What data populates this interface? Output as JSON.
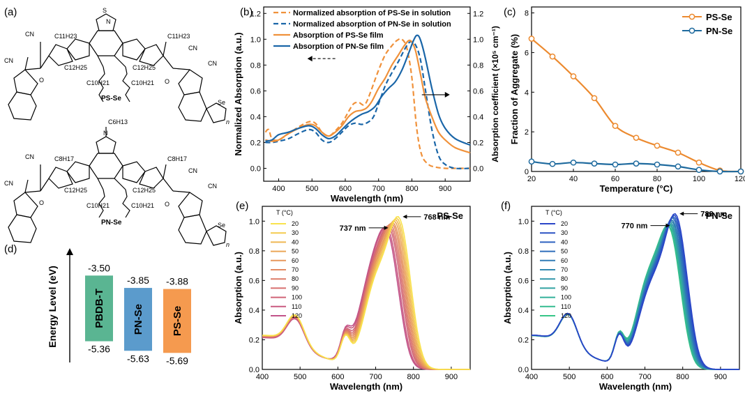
{
  "panels": {
    "a": {
      "letter": "(a)",
      "mol1": {
        "name": "PS-Se",
        "side_chain": "C11H23",
        "branch": "C12H25",
        "branch2": "C10H21",
        "core": "Se",
        "top_atom": "S",
        "n": "n"
      },
      "mol2": {
        "name": "PN-Se",
        "side_chain": "C8H17",
        "branch": "C12H25",
        "branch2": "C10H21",
        "core": "Se",
        "top_atom": "N",
        "top_sub": "C6H13",
        "n": "n"
      },
      "cn": "CN",
      "o": "O",
      "s": "S",
      "n": "N"
    },
    "b": {
      "letter": "(b)"
    },
    "c": {
      "letter": "(c)"
    },
    "d": {
      "letter": "(d)"
    },
    "e": {
      "letter": "(e)"
    },
    "f": {
      "letter": "(f)"
    }
  },
  "chart_data": [
    {
      "panel": "b",
      "type": "line",
      "xlabel": "Wavelength (nm)",
      "ylabel": "Normalized Absorption (a.u.)",
      "y2label": "Absorption coefficient (×10⁵ cm⁻¹)",
      "xlim": [
        355,
        975
      ],
      "ylim": [
        -0.1,
        1.25
      ],
      "y2lim": [
        -0.1,
        1.25
      ],
      "xticks": [
        400,
        500,
        600,
        700,
        800,
        900
      ],
      "yticks": [
        0.0,
        0.2,
        0.4,
        0.6,
        0.8,
        1.0,
        1.2
      ],
      "y2ticks": [
        0.0,
        0.2,
        0.4,
        0.6,
        0.8,
        1.0,
        1.2
      ],
      "legend_position": "top",
      "series": [
        {
          "name": "Normalized absorption of PS-Se in solution",
          "color": "#f0913a",
          "style": "dash",
          "x": [
            360,
            370,
            380,
            400,
            430,
            460,
            490,
            510,
            530,
            550,
            570,
            590,
            610,
            625,
            640,
            655,
            665,
            680,
            700,
            720,
            740,
            755,
            770,
            785,
            800,
            815,
            830,
            850,
            870,
            900,
            930,
            975
          ],
          "y": [
            0.28,
            0.3,
            0.23,
            0.22,
            0.27,
            0.32,
            0.36,
            0.35,
            0.28,
            0.25,
            0.29,
            0.35,
            0.44,
            0.5,
            0.51,
            0.49,
            0.52,
            0.62,
            0.76,
            0.88,
            0.95,
            0.99,
            1.0,
            0.93,
            0.7,
            0.3,
            0.1,
            0.03,
            0.01,
            0.0,
            0.0,
            0.0
          ]
        },
        {
          "name": "Normalized absorption of PN-Se in solution",
          "color": "#1a66a8",
          "style": "dash",
          "x": [
            360,
            380,
            400,
            430,
            460,
            490,
            510,
            530,
            550,
            570,
            590,
            610,
            630,
            650,
            670,
            685,
            700,
            720,
            740,
            760,
            780,
            795,
            810,
            825,
            840,
            860,
            880,
            900,
            930,
            975
          ],
          "y": [
            0.2,
            0.2,
            0.21,
            0.23,
            0.27,
            0.3,
            0.28,
            0.22,
            0.2,
            0.23,
            0.28,
            0.33,
            0.35,
            0.34,
            0.36,
            0.4,
            0.5,
            0.64,
            0.74,
            0.83,
            0.93,
            0.98,
            0.96,
            0.85,
            0.62,
            0.3,
            0.1,
            0.03,
            0.0,
            0.0
          ]
        },
        {
          "name": "Absorption of PS-Se film",
          "color": "#f0913a",
          "style": "solid",
          "x": [
            360,
            380,
            400,
            430,
            460,
            490,
            510,
            530,
            550,
            570,
            590,
            610,
            630,
            650,
            665,
            680,
            700,
            720,
            740,
            760,
            780,
            795,
            810,
            825,
            840,
            860,
            880,
            900,
            930,
            975
          ],
          "y": [
            0.22,
            0.21,
            0.22,
            0.27,
            0.31,
            0.34,
            0.33,
            0.28,
            0.25,
            0.28,
            0.33,
            0.4,
            0.44,
            0.45,
            0.47,
            0.52,
            0.62,
            0.7,
            0.8,
            0.88,
            0.96,
            0.99,
            0.92,
            0.74,
            0.55,
            0.4,
            0.28,
            0.22,
            0.16,
            0.12
          ]
        },
        {
          "name": "Absorption of PN-Se film",
          "color": "#1a66a8",
          "style": "solid",
          "x": [
            360,
            380,
            400,
            430,
            460,
            490,
            510,
            530,
            550,
            570,
            590,
            610,
            630,
            650,
            670,
            690,
            710,
            730,
            750,
            770,
            790,
            805,
            815,
            825,
            840,
            860,
            880,
            900,
            930,
            975
          ],
          "y": [
            0.21,
            0.22,
            0.26,
            0.28,
            0.31,
            0.33,
            0.31,
            0.26,
            0.23,
            0.25,
            0.3,
            0.35,
            0.39,
            0.42,
            0.44,
            0.48,
            0.56,
            0.62,
            0.67,
            0.76,
            0.89,
            0.99,
            1.03,
            1.0,
            0.86,
            0.62,
            0.42,
            0.31,
            0.23,
            0.18
          ]
        }
      ],
      "arrows": [
        {
          "target": "left",
          "x_data": 570,
          "y_data": 0.85
        },
        {
          "target": "right",
          "x_data": 830,
          "y_data": 0.57
        }
      ]
    },
    {
      "panel": "c",
      "type": "line",
      "xlabel": "Temperature (°C)",
      "ylabel": "Fraction of Aggregate (%)",
      "xlim": [
        20,
        120
      ],
      "ylim": [
        0,
        8.3
      ],
      "xticks": [
        20,
        40,
        60,
        80,
        100,
        120
      ],
      "yticks": [
        0,
        2,
        4,
        6,
        8
      ],
      "legend_position": "top-right",
      "series": [
        {
          "name": "PS-Se",
          "color": "#ec8a2f",
          "x": [
            20,
            30,
            40,
            50,
            60,
            70,
            80,
            90,
            100,
            110,
            120
          ],
          "y": [
            6.7,
            5.8,
            4.8,
            3.7,
            2.3,
            1.7,
            1.3,
            0.95,
            0.45,
            0.05,
            0.0
          ]
        },
        {
          "name": "PN-Se",
          "color": "#1e6a9e",
          "x": [
            20,
            30,
            40,
            50,
            60,
            70,
            80,
            90,
            100,
            110,
            120
          ],
          "y": [
            0.5,
            0.38,
            0.45,
            0.4,
            0.35,
            0.4,
            0.35,
            0.25,
            0.08,
            0.0,
            0.0
          ]
        }
      ]
    },
    {
      "panel": "d",
      "type": "bar",
      "ylabel": "Energy Level (eV)",
      "categories": [
        "PBDB-T",
        "PN-Se",
        "PS-Se"
      ],
      "lumo": [
        -3.5,
        -3.85,
        -3.88
      ],
      "homo": [
        -5.36,
        -5.63,
        -5.69
      ],
      "lumo_labels": [
        "-3.50",
        "-3.85",
        "-3.88"
      ],
      "homo_labels": [
        "-5.36",
        "-5.63",
        "-5.69"
      ],
      "colors": [
        "#5ab592",
        "#5b9bcc",
        "#f59a4f"
      ],
      "ylim": [
        -6.0,
        -3.0
      ]
    },
    {
      "panel": "e",
      "type": "line",
      "title": "PS-Se",
      "xlabel": "Wavelength (nm)",
      "ylabel": "Absorption (a.u.)",
      "xlim": [
        400,
        950
      ],
      "ylim": [
        0.0,
        1.1
      ],
      "xticks": [
        400,
        500,
        600,
        700,
        800,
        900
      ],
      "yticks": [
        0.0,
        0.2,
        0.4,
        0.6,
        0.8,
        1.0
      ],
      "legend_title": "T (°C)",
      "legend_position": "top-left",
      "temperatures": [
        "20",
        "30",
        "40",
        "50",
        "60",
        "70",
        "80",
        "90",
        "100",
        "110",
        "120"
      ],
      "colors": [
        "#f9e24c",
        "#f4cc4f",
        "#efb753",
        "#eba657",
        "#e7975c",
        "#e28a62",
        "#dd7c68",
        "#d86f6f",
        "#d06477",
        "#c95a80",
        "#c15289"
      ],
      "peak_positions": [
        768,
        765,
        762,
        759,
        756,
        753,
        750,
        747,
        744,
        740,
        737
      ],
      "peak_values": [
        1.03,
        1.02,
        1.01,
        1.0,
        0.99,
        0.985,
        0.975,
        0.97,
        0.965,
        0.96,
        0.955
      ],
      "annotations": [
        {
          "text": "768 nm",
          "x": 768,
          "y": 1.03
        },
        {
          "text": "737 nm",
          "x": 737,
          "y": 0.955
        }
      ]
    },
    {
      "panel": "f",
      "type": "line",
      "title": "PN-Se",
      "xlabel": "Wavelength (nm)",
      "ylabel": "Absorption (a.u.)",
      "xlim": [
        400,
        950
      ],
      "ylim": [
        0.0,
        1.1
      ],
      "xticks": [
        400,
        500,
        600,
        700,
        800,
        900
      ],
      "yticks": [
        0.0,
        0.2,
        0.4,
        0.6,
        0.8,
        1.0
      ],
      "legend_title": "T (°C)",
      "legend_position": "top-left",
      "temperatures": [
        "20",
        "30",
        "40",
        "50",
        "60",
        "70",
        "80",
        "90",
        "100",
        "110",
        "120"
      ],
      "colors": [
        "#2a45c8",
        "#2b52c4",
        "#2d60c0",
        "#2e6dbb",
        "#307bb6",
        "#3188b0",
        "#3196aa",
        "#32a3a2",
        "#33b09a",
        "#34bb90",
        "#36c587"
      ],
      "peak_positions": [
        788,
        786,
        784,
        782,
        780,
        779,
        777,
        775,
        773,
        771,
        770
      ],
      "peak_values": [
        1.05,
        1.04,
        1.03,
        1.02,
        1.01,
        1.0,
        0.99,
        0.985,
        0.98,
        0.975,
        0.97
      ],
      "annotations": [
        {
          "text": "788 nm",
          "x": 788,
          "y": 1.05
        },
        {
          "text": "770 nm",
          "x": 770,
          "y": 0.97
        }
      ]
    }
  ]
}
